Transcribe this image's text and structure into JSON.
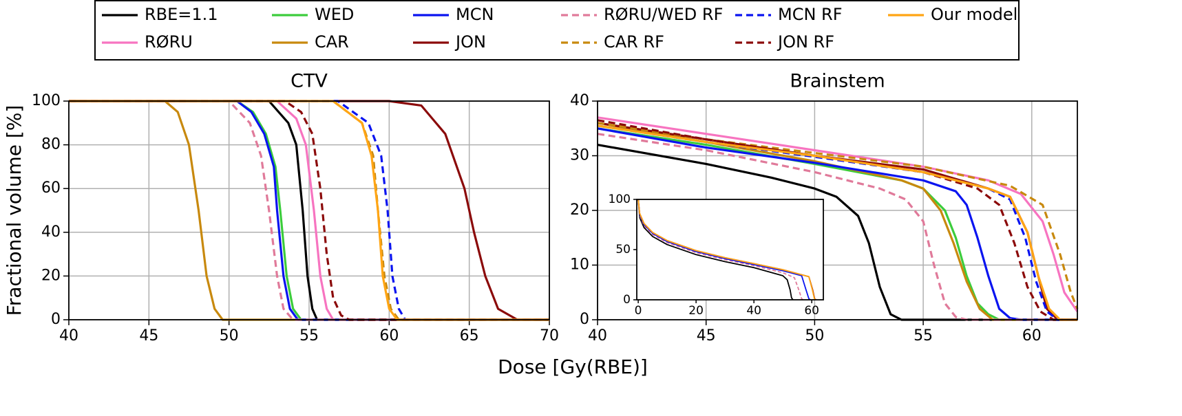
{
  "chart_data": [
    {
      "type": "line",
      "title": "CTV",
      "xlabel": "Dose [Gy(RBE)]",
      "ylabel": "Fractional volume [%]",
      "xlim": [
        40,
        70
      ],
      "ylim": [
        0,
        100
      ],
      "xticks": [
        40,
        45,
        50,
        55,
        60,
        65,
        70
      ],
      "yticks": [
        0,
        20,
        40,
        60,
        80,
        100
      ],
      "grid": true,
      "series": [
        {
          "name": "RBE=1.1",
          "color": "#000000",
          "linestyle": "solid",
          "x": [
            40,
            52.5,
            53.7,
            54.2,
            54.6,
            54.9,
            55.2,
            55.5,
            70
          ],
          "values": [
            100,
            100,
            90,
            80,
            50,
            20,
            5,
            0,
            0
          ]
        },
        {
          "name": "RØRU",
          "color": "#f774c0",
          "linestyle": "solid",
          "x": [
            40,
            53,
            54.2,
            54.8,
            55.3,
            55.7,
            56.1,
            56.5,
            70
          ],
          "values": [
            100,
            100,
            92,
            80,
            50,
            20,
            5,
            0,
            0
          ]
        },
        {
          "name": "WED",
          "color": "#3ccc3c",
          "linestyle": "solid",
          "x": [
            40,
            50.5,
            51.5,
            52.3,
            52.9,
            53.2,
            53.6,
            54,
            54.5,
            70
          ],
          "values": [
            100,
            100,
            95,
            85,
            70,
            50,
            20,
            5,
            0,
            0
          ]
        },
        {
          "name": "CAR",
          "color": "#c8890e",
          "linestyle": "solid",
          "x": [
            40,
            46,
            46.8,
            47.5,
            48.1,
            48.6,
            49.1,
            49.6,
            70
          ],
          "values": [
            100,
            100,
            95,
            80,
            50,
            20,
            5,
            0,
            0
          ]
        },
        {
          "name": "MCN",
          "color": "#0a14f0",
          "linestyle": "solid",
          "x": [
            40,
            50.5,
            51.4,
            52.2,
            52.8,
            53,
            53.4,
            53.8,
            54.3,
            70
          ],
          "values": [
            100,
            100,
            95,
            85,
            70,
            50,
            20,
            5,
            0,
            0
          ]
        },
        {
          "name": "JON",
          "color": "#8b0a0a",
          "linestyle": "solid",
          "x": [
            40,
            60,
            62,
            63.5,
            64.7,
            65.3,
            66,
            66.8,
            68,
            70
          ],
          "values": [
            100,
            100,
            98,
            85,
            60,
            40,
            20,
            5,
            0,
            0
          ]
        },
        {
          "name": "RØRU/WED RF",
          "color": "#e07a9a",
          "linestyle": "dashed",
          "x": [
            40,
            50,
            51.3,
            52,
            52.5,
            53,
            53.4,
            54,
            70
          ],
          "values": [
            100,
            100,
            90,
            75,
            50,
            20,
            5,
            0,
            0
          ]
        },
        {
          "name": "CAR RF",
          "color": "#c8890e",
          "linestyle": "dashed",
          "x": [
            40,
            56.5,
            58.3,
            59,
            59.3,
            59.7,
            60.1,
            60.6,
            70
          ],
          "values": [
            100,
            100,
            90,
            75,
            50,
            20,
            5,
            0,
            0
          ]
        },
        {
          "name": "MCN RF",
          "color": "#0a14f0",
          "linestyle": "dashed",
          "x": [
            40,
            56.8,
            58.7,
            59.5,
            59.9,
            60.2,
            60.6,
            61,
            70
          ],
          "values": [
            100,
            100,
            90,
            75,
            50,
            20,
            5,
            0,
            0
          ]
        },
        {
          "name": "JON RF",
          "color": "#8b0a0a",
          "linestyle": "dashed",
          "x": [
            40,
            53.5,
            54.5,
            55.2,
            55.7,
            56.1,
            56.5,
            57,
            57.5,
            70
          ],
          "values": [
            100,
            100,
            95,
            85,
            60,
            30,
            10,
            2,
            0,
            0
          ]
        },
        {
          "name": "Our model",
          "color": "#ffa514",
          "linestyle": "solid",
          "x": [
            40,
            56.5,
            58.3,
            58.9,
            59.3,
            59.6,
            60,
            60.5,
            70
          ],
          "values": [
            100,
            100,
            90,
            75,
            50,
            20,
            5,
            0,
            0
          ]
        }
      ]
    },
    {
      "type": "line",
      "title": "Brainstem",
      "xlim": [
        40,
        62.1
      ],
      "ylim": [
        0,
        40
      ],
      "xticks": [
        40,
        45,
        50,
        55,
        60
      ],
      "yticks": [
        0,
        10,
        20,
        30,
        40
      ],
      "grid": true,
      "series": [
        {
          "color": "#000000",
          "linestyle": "solid",
          "x": [
            40,
            45,
            48,
            50,
            51,
            52,
            52.5,
            53,
            53.5,
            54,
            62.1
          ],
          "values": [
            32,
            28.5,
            26,
            24,
            22.5,
            19,
            14,
            6,
            1,
            0,
            0
          ]
        },
        {
          "color": "#f774c0",
          "linestyle": "solid",
          "x": [
            40,
            45,
            50,
            55,
            58,
            59.5,
            60.5,
            61,
            61.5,
            62.1
          ],
          "values": [
            37,
            34,
            31,
            28,
            25.5,
            23,
            18,
            12,
            5,
            1.5
          ]
        },
        {
          "color": "#3ccc3c",
          "linestyle": "solid",
          "x": [
            40,
            45,
            50,
            54,
            55,
            56,
            56.5,
            57,
            57.5,
            58,
            58.5,
            62.1
          ],
          "values": [
            35,
            32,
            28.5,
            25.5,
            24,
            20,
            15,
            8,
            3,
            1,
            0,
            0
          ]
        },
        {
          "color": "#c8890e",
          "linestyle": "solid",
          "x": [
            40,
            45,
            50,
            54,
            55,
            55.8,
            56.4,
            57,
            57.6,
            58.2,
            62.1
          ],
          "values": [
            36,
            32.5,
            29,
            25.5,
            24,
            20,
            14,
            7,
            2,
            0,
            0
          ]
        },
        {
          "color": "#0a14f0",
          "linestyle": "solid",
          "x": [
            40,
            45,
            50,
            55,
            56.5,
            57,
            57.5,
            58,
            58.5,
            59,
            59.5,
            62.1
          ],
          "values": [
            35,
            31.5,
            28.7,
            25.5,
            23.5,
            21,
            15,
            8,
            2,
            0.3,
            0,
            0
          ]
        },
        {
          "color": "#8b0a0a",
          "linestyle": "solid",
          "x": [
            40,
            45,
            50,
            55,
            58,
            59,
            59.8,
            60.3,
            60.7,
            61.2,
            62.1
          ],
          "values": [
            36,
            33,
            30,
            27.5,
            24,
            22.5,
            16,
            8,
            2,
            0,
            0
          ]
        },
        {
          "color": "#e07a9a",
          "linestyle": "dashed",
          "x": [
            40,
            45,
            50,
            53,
            54.2,
            55,
            55.5,
            56,
            56.5,
            57,
            62.1
          ],
          "values": [
            34,
            31,
            27,
            24,
            22,
            18,
            10,
            3,
            0.5,
            0,
            0
          ]
        },
        {
          "color": "#c8890e",
          "linestyle": "dashed",
          "x": [
            40,
            45,
            50,
            55,
            59,
            60.5,
            61.3,
            61.8,
            62.1
          ],
          "values": [
            36,
            33,
            30.5,
            28,
            24.5,
            21,
            12,
            5,
            2
          ]
        },
        {
          "color": "#0a14f0",
          "linestyle": "dashed",
          "x": [
            40,
            45,
            50,
            55,
            58,
            59,
            59.7,
            60.2,
            60.7,
            61.2,
            62.1
          ],
          "values": [
            35.5,
            32.5,
            29.8,
            27,
            24,
            22,
            15,
            7,
            1.5,
            0,
            0
          ]
        },
        {
          "color": "#8b0a0a",
          "linestyle": "dashed",
          "x": [
            40,
            45,
            50,
            55,
            57.5,
            58.5,
            59.2,
            59.8,
            60.4,
            61,
            62.1
          ],
          "values": [
            36.5,
            33,
            30,
            27,
            24,
            21,
            14,
            6,
            1.5,
            0,
            0
          ]
        },
        {
          "color": "#ffa514",
          "linestyle": "solid",
          "x": [
            40,
            45,
            50,
            55,
            58,
            59,
            59.8,
            60.3,
            60.8,
            61.3,
            62.1
          ],
          "values": [
            35.5,
            32.5,
            30,
            27,
            24,
            22.5,
            16,
            8,
            2,
            0,
            0
          ]
        }
      ]
    },
    {
      "type": "line",
      "xlim": [
        -0.5,
        64
      ],
      "ylim": [
        0,
        100
      ],
      "xticks": [
        0,
        20,
        40,
        60
      ],
      "yticks": [
        0,
        50,
        100
      ],
      "grid": false,
      "series": [
        {
          "color": "#000000",
          "linestyle": "solid",
          "x": [
            0,
            0.5,
            2,
            5,
            10,
            20,
            30,
            40,
            50,
            51.5,
            52.5,
            53,
            53.5
          ],
          "values": [
            100,
            82,
            72,
            63,
            55,
            45,
            38,
            32,
            24,
            20,
            10,
            2,
            0
          ]
        },
        {
          "color": "#e07a9a",
          "linestyle": "dashed",
          "x": [
            0,
            0.5,
            2,
            5,
            10,
            20,
            30,
            40,
            50,
            54,
            55.5,
            56.5,
            57
          ],
          "values": [
            100,
            84,
            74,
            65,
            57,
            47,
            40,
            34,
            27,
            22,
            10,
            1,
            0
          ]
        },
        {
          "color": "#0a14f0",
          "linestyle": "solid",
          "x": [
            0,
            0.5,
            2,
            5,
            10,
            20,
            30,
            40,
            50,
            56.5,
            58,
            59,
            59.5
          ],
          "values": [
            100,
            85,
            75,
            66,
            58,
            48,
            41,
            35,
            29,
            24,
            10,
            1,
            0
          ]
        },
        {
          "color": "#8b0a0a",
          "linestyle": "solid",
          "x": [
            0,
            0.5,
            2,
            5,
            10,
            20,
            30,
            40,
            50,
            59,
            60.3,
            61,
            61.5
          ],
          "values": [
            100,
            86,
            76,
            67,
            59,
            49,
            42,
            36,
            30,
            23,
            10,
            1,
            0
          ]
        },
        {
          "color": "#ffa514",
          "linestyle": "solid",
          "x": [
            0,
            0.5,
            2,
            5,
            10,
            20,
            30,
            40,
            50,
            59,
            60.2,
            60.9,
            61.4
          ],
          "values": [
            100,
            86,
            76,
            67,
            59,
            49,
            42,
            36,
            30,
            23,
            10,
            1,
            0
          ]
        }
      ]
    }
  ]
}
